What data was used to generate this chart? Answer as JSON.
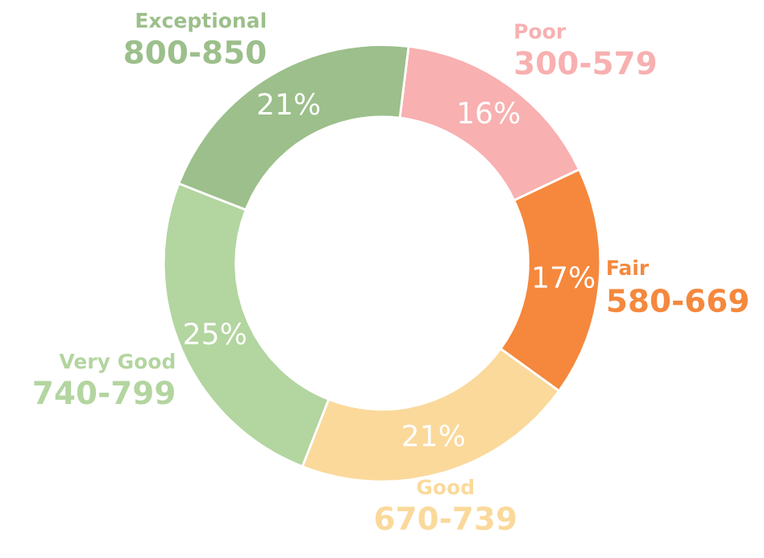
{
  "chart_data": {
    "type": "donut",
    "categories": [
      "Poor\n300-579",
      "Fair\n580-669",
      "Good\n670-739",
      "Very Good\n740-799",
      "Exceptional\n800-850"
    ],
    "values": [
      16,
      17,
      21,
      25,
      21
    ],
    "value_labels": [
      "16%",
      "17%",
      "21%",
      "25%",
      "21%"
    ],
    "colors": [
      "#f8b0b0",
      "#f5883d",
      "#fad99b",
      "#b3d5a0",
      "#9cbf8b"
    ],
    "legend": false
  }
}
